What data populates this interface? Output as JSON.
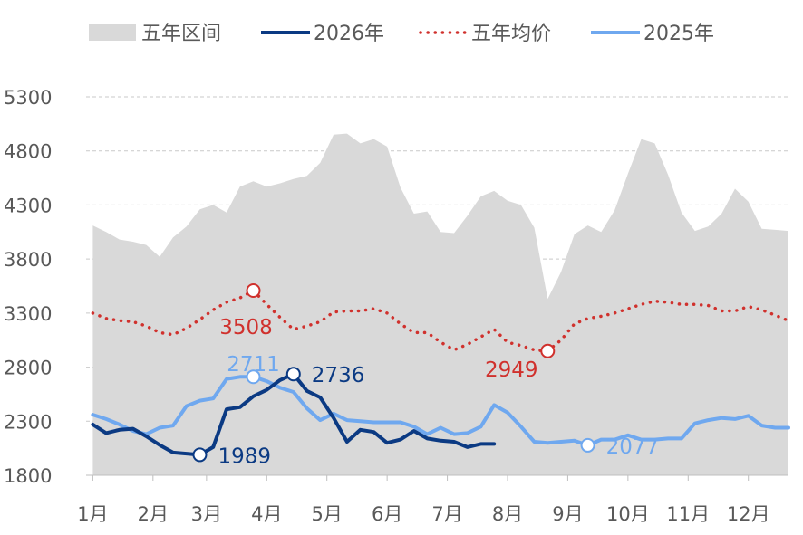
{
  "chart_data": {
    "type": "line",
    "title": "",
    "xlabel": "",
    "ylabel": "",
    "ylim": [
      1800,
      5300
    ],
    "yticks": [
      1800,
      2300,
      2800,
      3300,
      3800,
      4300,
      4800,
      5300
    ],
    "x_month_ticks": [
      {
        "label": "1月",
        "week": 1
      },
      {
        "label": "2月",
        "week": 5.5
      },
      {
        "label": "3月",
        "week": 9.5
      },
      {
        "label": "4月",
        "week": 14
      },
      {
        "label": "5月",
        "week": 18.5
      },
      {
        "label": "6月",
        "week": 23
      },
      {
        "label": "7月",
        "week": 27.5
      },
      {
        "label": "8月",
        "week": 32
      },
      {
        "label": "9月",
        "week": 36.5
      },
      {
        "label": "10月",
        "week": 41
      },
      {
        "label": "11月",
        "week": 45.5
      },
      {
        "label": "12月",
        "week": 50
      }
    ],
    "x_week_range": [
      0.5,
      53
    ],
    "grid": true,
    "legend_position": "top",
    "legend": [
      {
        "label": "五年区间",
        "kind": "area",
        "color": "#d9d9d9"
      },
      {
        "label": "2026年",
        "kind": "line",
        "color": "#0b3a83"
      },
      {
        "label": "五年均价",
        "kind": "dotted",
        "color": "#d0312d"
      },
      {
        "label": "2025年",
        "kind": "line",
        "color": "#6fa8ef"
      }
    ],
    "series": [
      {
        "name": "五年区间",
        "type": "range",
        "color": "#d9d9d9",
        "x": [
          1,
          2,
          3,
          4,
          5,
          6,
          7,
          8,
          9,
          10,
          11,
          12,
          13,
          14,
          15,
          16,
          17,
          18,
          19,
          20,
          21,
          22,
          23,
          24,
          25,
          26,
          27,
          28,
          29,
          30,
          31,
          32,
          33,
          34,
          35,
          36,
          37,
          38,
          39,
          40,
          41,
          42,
          43,
          44,
          45,
          46,
          47,
          48,
          49,
          50,
          51,
          52,
          53
        ],
        "upper": [
          4110,
          4050,
          3980,
          3960,
          3930,
          3820,
          4000,
          4100,
          4260,
          4300,
          4230,
          4470,
          4520,
          4470,
          4500,
          4540,
          4570,
          4690,
          4950,
          4960,
          4870,
          4910,
          4840,
          4460,
          4220,
          4240,
          4050,
          4040,
          4200,
          4380,
          4430,
          4340,
          4300,
          4090,
          3430,
          3680,
          4030,
          4110,
          4050,
          4250,
          4590,
          4910,
          4870,
          4580,
          4230,
          4060,
          4100,
          4220,
          4450,
          4330,
          4080,
          4070,
          4060
        ],
        "lower": [
          1800,
          1800,
          1800,
          1800,
          1800,
          1800,
          1800,
          1800,
          1800,
          1800,
          1800,
          1800,
          1800,
          1800,
          1800,
          1800,
          1800,
          1800,
          1800,
          1800,
          1800,
          1800,
          1800,
          1800,
          1800,
          1800,
          1800,
          1800,
          1800,
          1800,
          1800,
          1800,
          1800,
          1800,
          1800,
          1800,
          1800,
          1800,
          1800,
          1800,
          1800,
          1800,
          1800,
          1800,
          1800,
          1800,
          1800,
          1800,
          1800,
          1800,
          1800,
          1800,
          1800
        ]
      },
      {
        "name": "五年均价",
        "type": "dotted",
        "color": "#d0312d",
        "x": [
          1,
          2,
          3,
          4,
          5,
          6,
          7,
          8,
          9,
          10,
          11,
          12,
          13,
          14,
          15,
          16,
          17,
          18,
          19,
          20,
          21,
          22,
          23,
          24,
          25,
          26,
          27,
          28,
          29,
          30,
          31,
          32,
          33,
          34,
          35,
          36,
          37,
          38,
          39,
          40,
          41,
          42,
          43,
          44,
          45,
          46,
          47,
          48,
          49,
          50,
          51,
          52,
          53
        ],
        "values": [
          3300,
          3250,
          3230,
          3220,
          3180,
          3120,
          3100,
          3160,
          3240,
          3330,
          3400,
          3440,
          3508,
          3380,
          3260,
          3150,
          3180,
          3220,
          3310,
          3320,
          3320,
          3340,
          3300,
          3200,
          3120,
          3120,
          3030,
          2960,
          3010,
          3080,
          3150,
          3030,
          3000,
          2960,
          2949,
          3050,
          3200,
          3250,
          3270,
          3300,
          3340,
          3380,
          3410,
          3400,
          3380,
          3380,
          3370,
          3320,
          3320,
          3360,
          3330,
          3280,
          3230
        ]
      },
      {
        "name": "2025年",
        "type": "line",
        "color": "#6fa8ef",
        "x": [
          1,
          2,
          3,
          4,
          5,
          6,
          7,
          8,
          9,
          10,
          11,
          12,
          13,
          14,
          15,
          16,
          17,
          18,
          19,
          20,
          21,
          22,
          23,
          24,
          25,
          26,
          27,
          28,
          29,
          30,
          31,
          32,
          33,
          34,
          35,
          36,
          37,
          38,
          39,
          40,
          41,
          42,
          43,
          44,
          45,
          46,
          47,
          48,
          49,
          50,
          51,
          52,
          53
        ],
        "values": [
          2360,
          2320,
          2270,
          2210,
          2180,
          2240,
          2260,
          2440,
          2490,
          2510,
          2690,
          2710,
          2711,
          2670,
          2610,
          2570,
          2420,
          2310,
          2370,
          2310,
          2300,
          2290,
          2290,
          2290,
          2250,
          2180,
          2240,
          2180,
          2190,
          2250,
          2450,
          2380,
          2250,
          2110,
          2100,
          2110,
          2120,
          2077,
          2130,
          2130,
          2170,
          2130,
          2130,
          2140,
          2140,
          2280,
          2310,
          2330,
          2320,
          2350,
          2260,
          2240,
          2240
        ]
      },
      {
        "name": "2026年",
        "type": "line",
        "color": "#0b3a83",
        "x": [
          1,
          2,
          3,
          4,
          5,
          6,
          7,
          8,
          9,
          10,
          11,
          12,
          13,
          14,
          15,
          16,
          17,
          18,
          19,
          20,
          21,
          22,
          23,
          24,
          25,
          26,
          27,
          28,
          29,
          30,
          31
        ],
        "values": [
          2270,
          2190,
          2220,
          2230,
          2160,
          2080,
          2010,
          2000,
          1989,
          2060,
          2410,
          2430,
          2530,
          2590,
          2680,
          2736,
          2580,
          2520,
          2330,
          2110,
          2220,
          2200,
          2100,
          2130,
          2210,
          2140,
          2120,
          2110,
          2060,
          2090,
          2090
        ]
      }
    ],
    "annotations": [
      {
        "series": "五年均价",
        "x": 13,
        "value": 3508,
        "label": "3508",
        "color": "#d0312d",
        "pos": "below"
      },
      {
        "series": "五年均价",
        "x": 35,
        "value": 2949,
        "label": "2949",
        "color": "#d0312d",
        "pos": "below-left"
      },
      {
        "series": "2025年",
        "x": 13,
        "value": 2711,
        "label": "2711",
        "color": "#6fa8ef",
        "pos": "above"
      },
      {
        "series": "2025年",
        "x": 38,
        "value": 2077,
        "label": "2077",
        "color": "#6fa8ef",
        "pos": "right"
      },
      {
        "series": "2026年",
        "x": 16,
        "value": 2736,
        "label": "2736",
        "color": "#0b3a83",
        "pos": "right"
      },
      {
        "series": "2026年",
        "x": 9,
        "value": 1989,
        "label": "1989",
        "color": "#0b3a83",
        "pos": "right"
      }
    ]
  }
}
